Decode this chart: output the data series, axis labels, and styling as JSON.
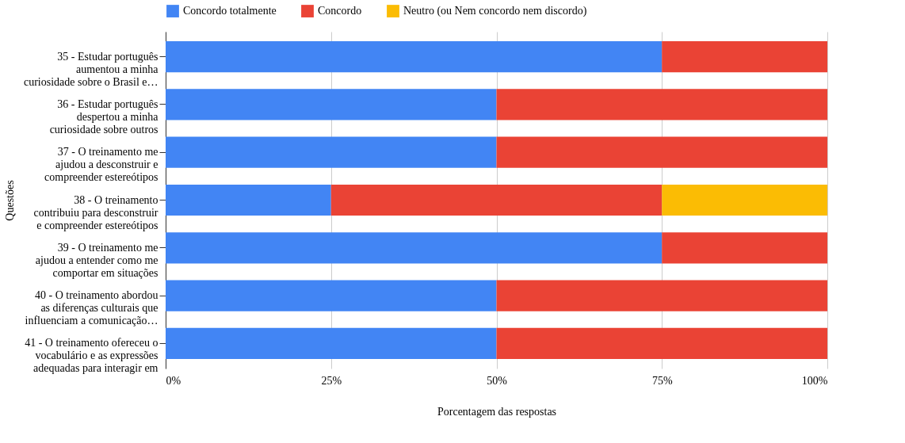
{
  "chart_data": {
    "type": "bar",
    "orientation": "horizontal",
    "stacked": true,
    "categories": [
      "35 - Estudar português\naumentou a minha\ncuriosidade sobre o Brasil e…",
      "36 - Estudar português\ndespertou a minha\ncuriosidade sobre outros",
      "37 - O treinamento me\najudou a desconstruir e\ncompreender estereótipos",
      "38 - O treinamento\ncontribuiu para desconstruir\ne compreender estereótipos",
      "39 - O treinamento me\najudou a entender como me\ncomportar em situações",
      "40 - O treinamento abordou\nas diferenças culturais que\ninfluenciam a comunicação…",
      "41 - O treinamento ofereceu o\nvocabulário e as expressões\nadequadas para interagir em"
    ],
    "series": [
      {
        "name": "Concordo totalmente",
        "color": "#4285f4",
        "values": [
          75,
          50,
          50,
          25,
          75,
          50,
          50
        ]
      },
      {
        "name": "Concordo",
        "color": "#ea4335",
        "values": [
          25,
          50,
          50,
          50,
          25,
          50,
          50
        ]
      },
      {
        "name": "Neutro (ou Nem concordo nem discordo)",
        "color": "#fbbc04",
        "values": [
          null,
          null,
          null,
          25,
          null,
          null,
          null
        ]
      }
    ],
    "xlim": [
      0,
      100
    ],
    "xticks": [
      {
        "value": 0,
        "label": "0%"
      },
      {
        "value": 25,
        "label": "25%"
      },
      {
        "value": 50,
        "label": "50%"
      },
      {
        "value": 75,
        "label": "75%"
      },
      {
        "value": 100,
        "label": "100%"
      }
    ],
    "xlabel": "Porcentagem das respostas",
    "ylabel": "Questões",
    "grid": "x",
    "legend": "top"
  }
}
